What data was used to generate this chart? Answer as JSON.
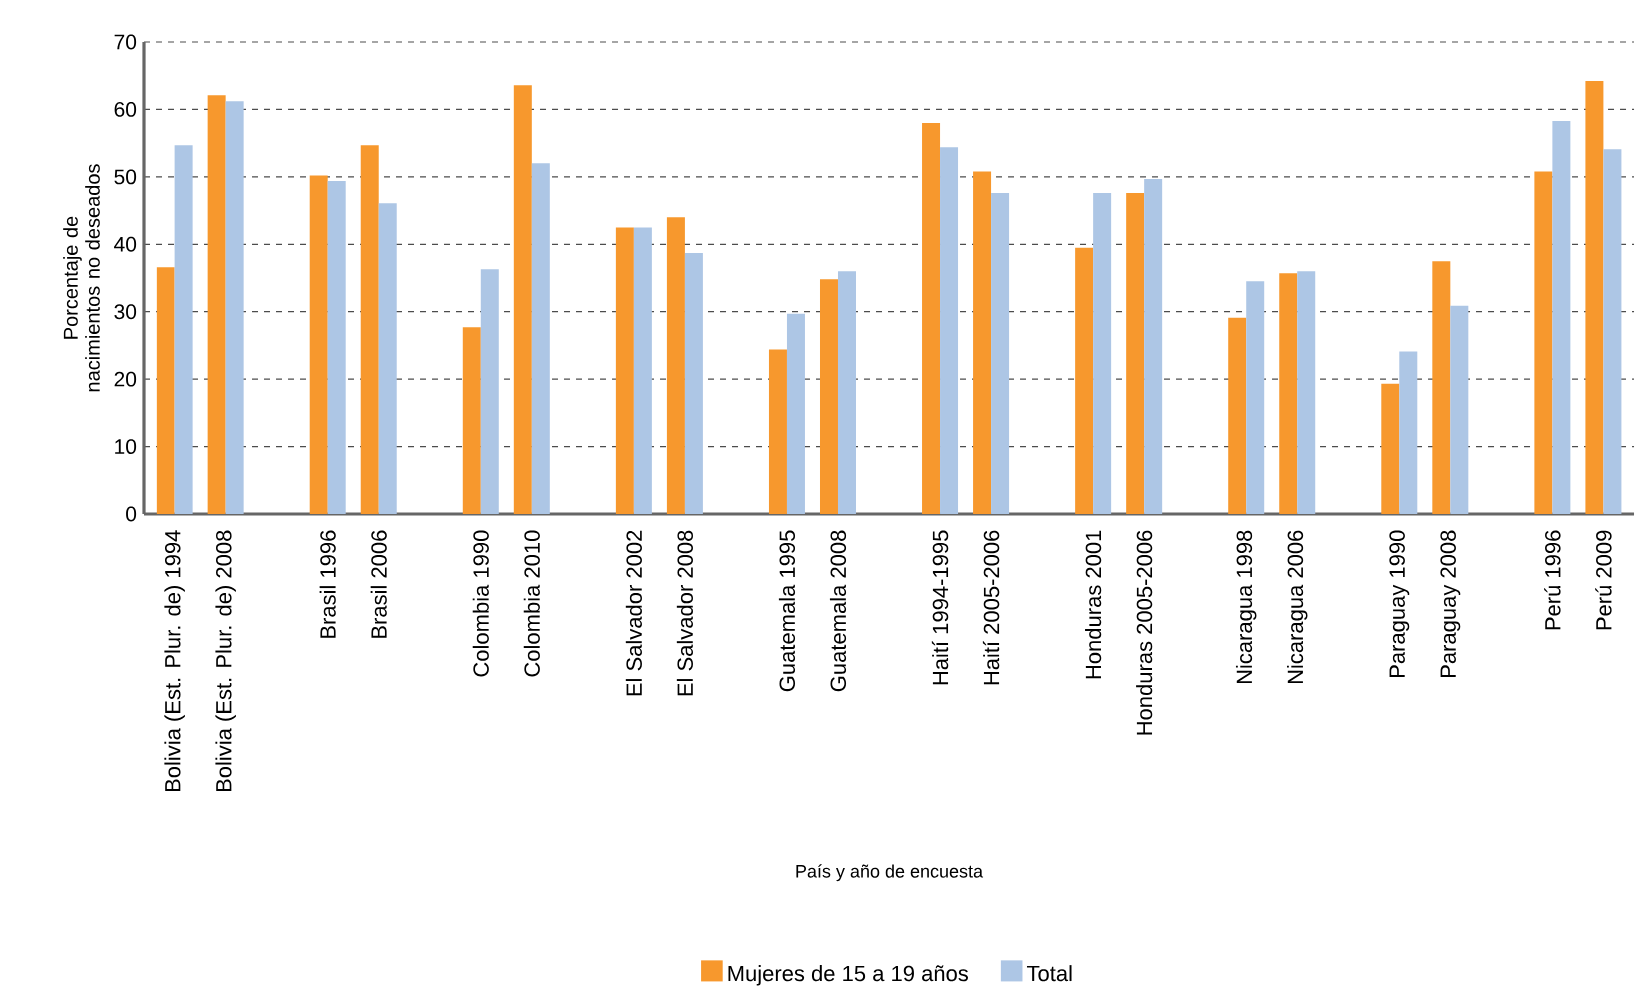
{
  "chart_data": {
    "type": "bar",
    "xlabel": "País y año de encuesta",
    "ylabel": "Porcentaje de nacimientos no deseados",
    "categories": [
      "Bolivia (Est. Plur. de) 1994",
      "Bolivia (Est. Plur. de) 2008",
      null,
      "Brasil 1996",
      "Brasil 2006",
      null,
      "Colombia 1990",
      "Colombia 2010",
      null,
      "El Salvador 2002",
      "El Salvador 2008",
      null,
      "Guatemala 1995",
      "Guatemala 2008",
      null,
      "Haití 1994-1995",
      "Haití 2005-2006",
      null,
      "Honduras 2001",
      "Honduras 2005-2006",
      null,
      "Nicaragua 1998",
      "Nicaragua 2006",
      null,
      "Paraguay 1990",
      "Paraguay 2008",
      null,
      "Perú 1996",
      "Perú 2009"
    ],
    "series": [
      {
        "name": "Mujeres de 15 a 19 años",
        "color": "#f7982d",
        "values": [
          36.6,
          62.1,
          null,
          50.2,
          54.7,
          null,
          27.7,
          63.6,
          null,
          42.5,
          44.0,
          null,
          24.4,
          34.8,
          null,
          58.0,
          50.8,
          null,
          39.5,
          47.6,
          null,
          29.1,
          35.7,
          null,
          19.3,
          37.5,
          null,
          50.8,
          64.2
        ]
      },
      {
        "name": "Total",
        "color": "#adc6e5",
        "values": [
          54.7,
          61.2,
          null,
          49.4,
          46.1,
          null,
          36.3,
          52.0,
          null,
          42.5,
          38.7,
          null,
          29.7,
          36.0,
          null,
          54.4,
          47.6,
          null,
          47.6,
          49.7,
          null,
          34.5,
          36.0,
          null,
          24.1,
          30.9,
          null,
          58.3,
          54.1
        ]
      }
    ],
    "ylim": [
      0,
      70
    ],
    "yticks": [
      0,
      10,
      20,
      30,
      40,
      50,
      60,
      70
    ],
    "grid": "y",
    "legend": "bottom"
  }
}
